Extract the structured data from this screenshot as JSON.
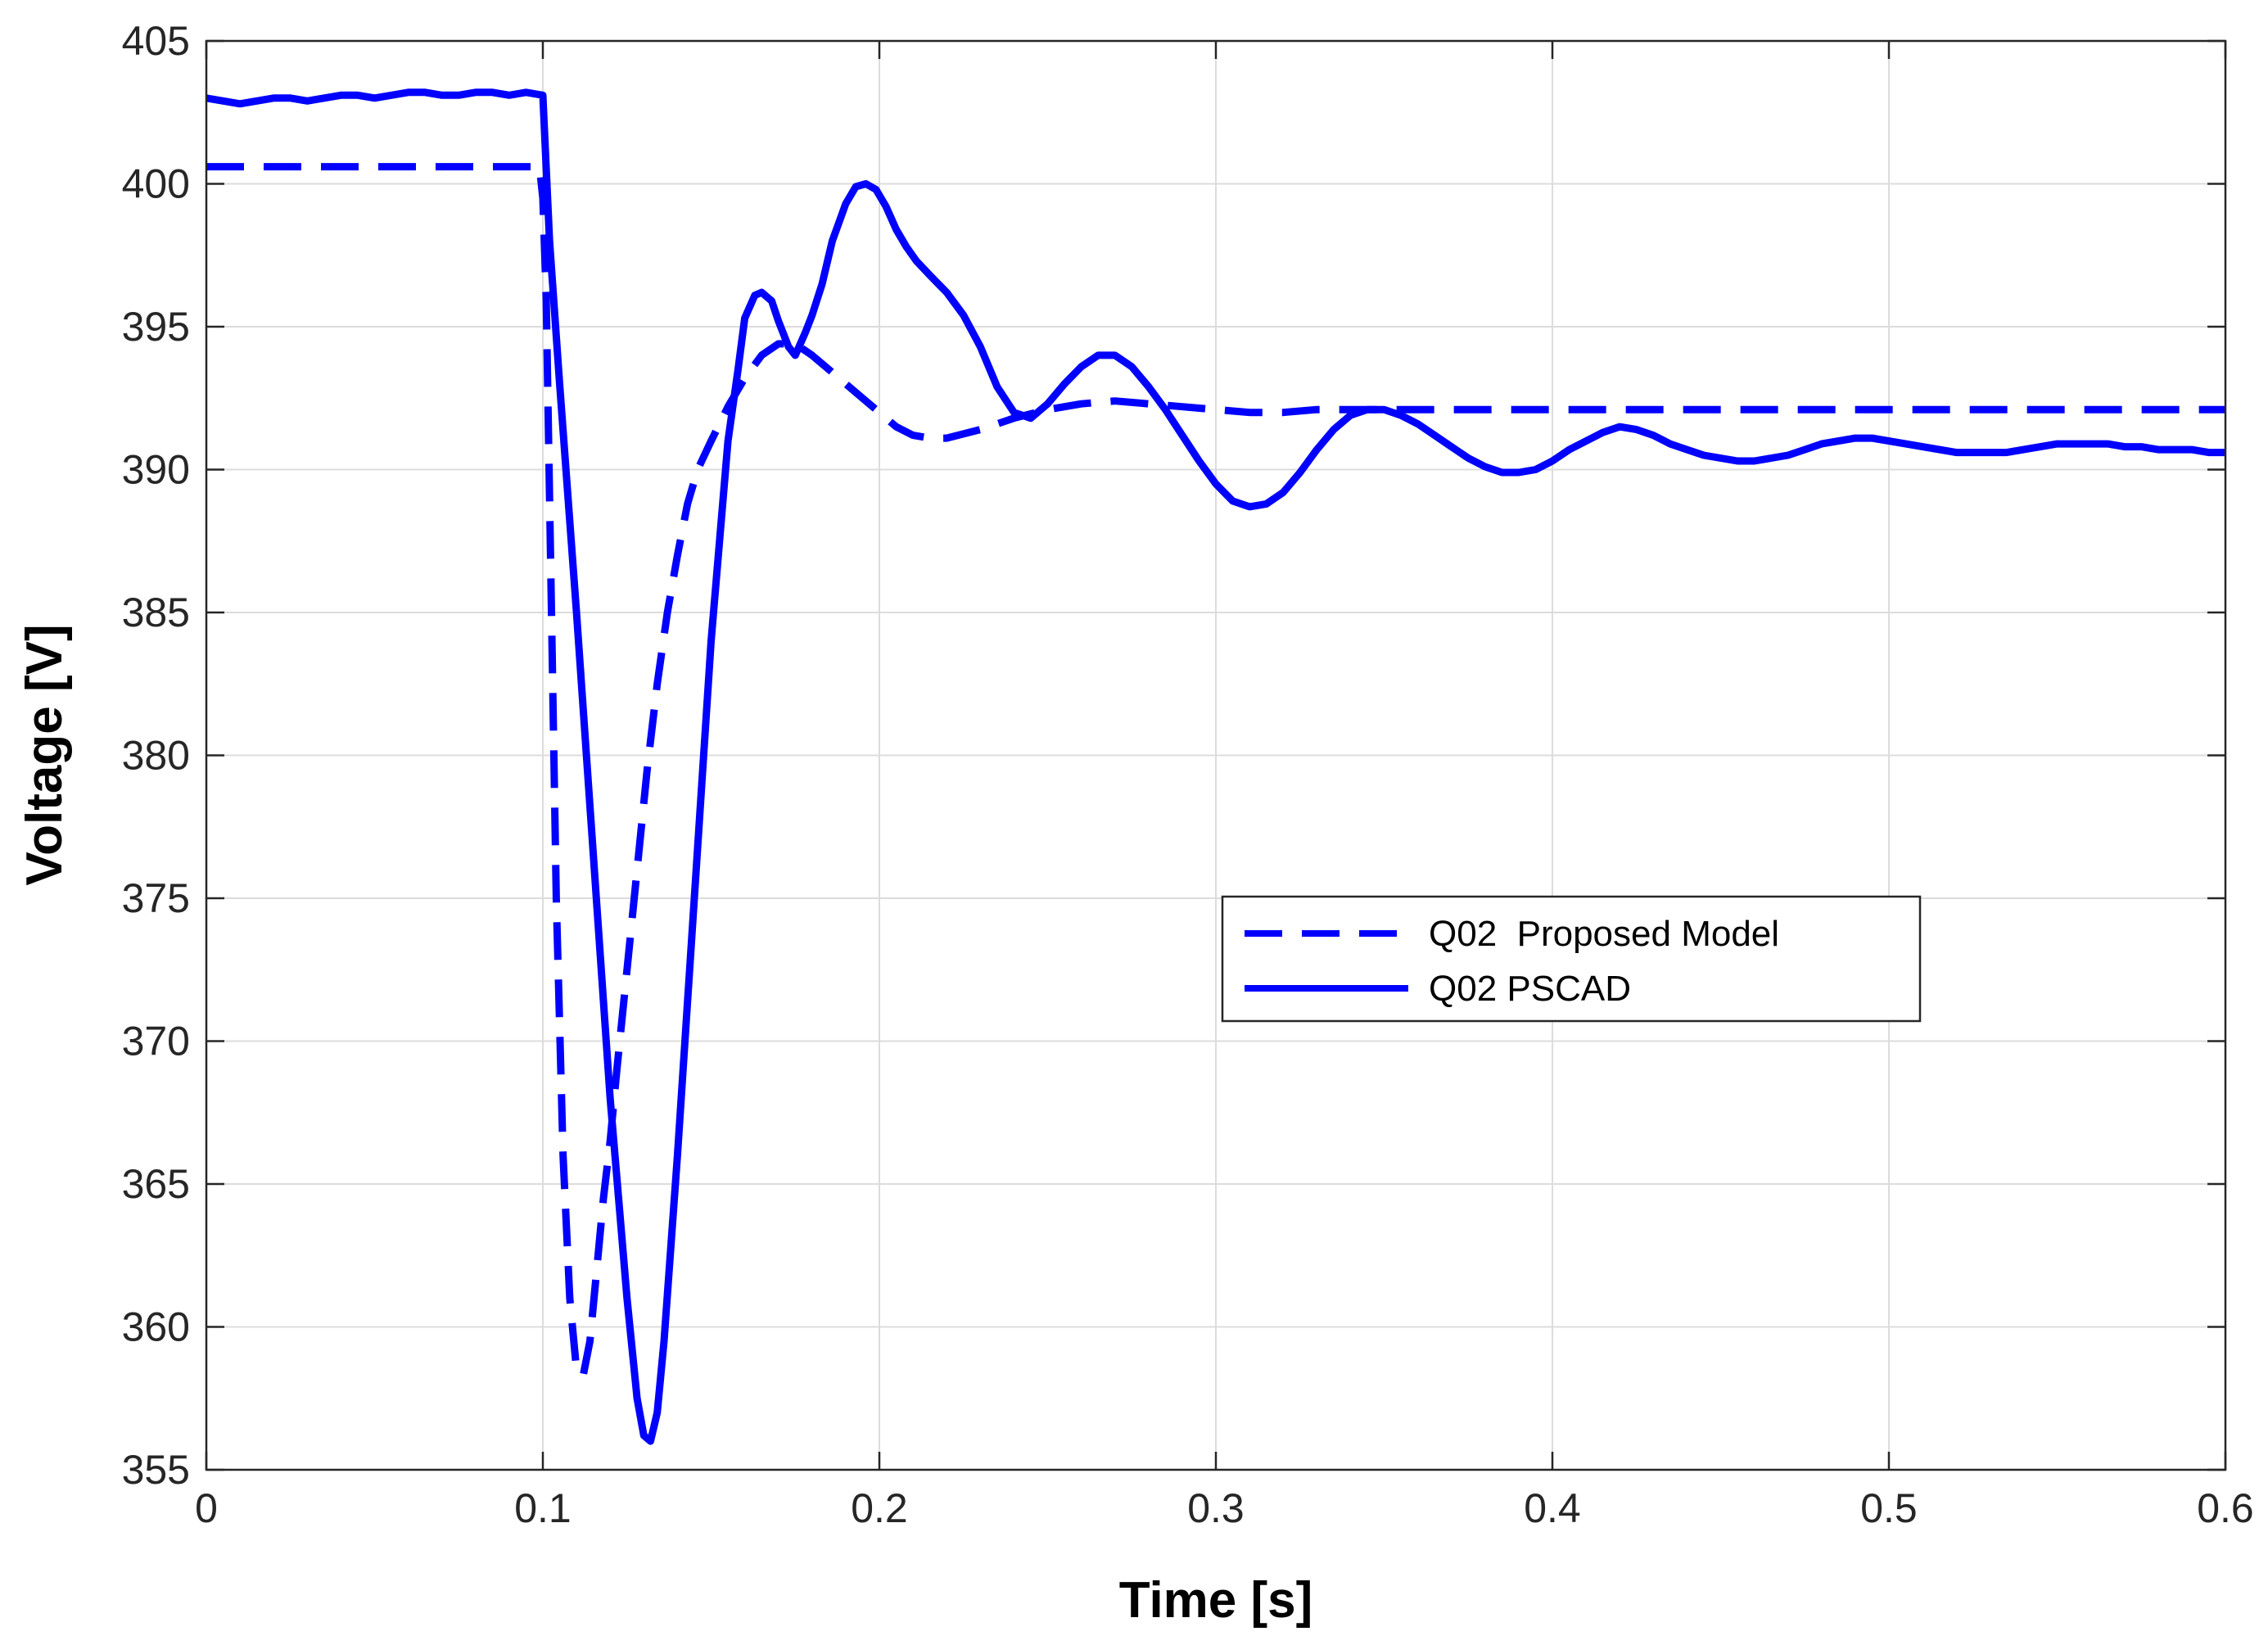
{
  "chart_data": {
    "type": "line",
    "title": "",
    "xlabel": "Time [s]",
    "ylabel": "Voltage [V]",
    "xlim": [
      0,
      0.6
    ],
    "ylim": [
      355,
      405
    ],
    "grid": true,
    "legend_position": "center-right",
    "xticks": [
      0,
      0.1,
      0.2,
      0.3,
      0.4,
      0.5,
      0.6
    ],
    "xtick_labels": [
      "0",
      "0.1",
      "0.2",
      "0.3",
      "0.4",
      "0.5",
      "0.6"
    ],
    "yticks": [
      355,
      360,
      365,
      370,
      375,
      380,
      385,
      390,
      395,
      400,
      405
    ],
    "ytick_labels": [
      "355",
      "360",
      "365",
      "370",
      "375",
      "380",
      "385",
      "390",
      "395",
      "400",
      "405"
    ],
    "series": [
      {
        "name": "Q02  Proposed Model",
        "style": "dashed",
        "color": "#0000ff",
        "x": [
          0,
          0.099,
          0.1,
          0.101,
          0.102,
          0.104,
          0.106,
          0.108,
          0.11,
          0.112,
          0.114,
          0.116,
          0.118,
          0.12,
          0.122,
          0.125,
          0.128,
          0.131,
          0.134,
          0.137,
          0.14,
          0.143,
          0.146,
          0.15,
          0.155,
          0.16,
          0.165,
          0.17,
          0.175,
          0.18,
          0.185,
          0.19,
          0.195,
          0.2,
          0.205,
          0.21,
          0.215,
          0.22,
          0.23,
          0.24,
          0.25,
          0.26,
          0.27,
          0.28,
          0.29,
          0.3,
          0.31,
          0.32,
          0.33,
          0.34,
          0.35,
          0.4,
          0.45,
          0.5,
          0.55,
          0.6
        ],
        "values": [
          400.6,
          400.6,
          399.5,
          396.0,
          389.0,
          375.0,
          366.0,
          361.0,
          358.5,
          358.3,
          359.5,
          362.0,
          364.5,
          366.5,
          369.0,
          372.5,
          376.0,
          379.5,
          382.5,
          385.0,
          387.0,
          388.8,
          390.0,
          391.0,
          392.2,
          393.2,
          394.0,
          394.4,
          394.4,
          394.0,
          393.5,
          393.0,
          392.5,
          392.0,
          391.5,
          391.2,
          391.1,
          391.1,
          391.4,
          391.8,
          392.1,
          392.3,
          392.4,
          392.3,
          392.2,
          392.1,
          392.0,
          392.0,
          392.1,
          392.1,
          392.1,
          392.1,
          392.1,
          392.1,
          392.1,
          392.1
        ]
      },
      {
        "name": "Q02 PSCAD",
        "style": "solid",
        "color": "#0000ff",
        "x": [
          0,
          0.005,
          0.01,
          0.015,
          0.02,
          0.025,
          0.03,
          0.035,
          0.04,
          0.045,
          0.05,
          0.055,
          0.06,
          0.065,
          0.07,
          0.075,
          0.08,
          0.085,
          0.09,
          0.095,
          0.1,
          0.102,
          0.105,
          0.11,
          0.115,
          0.12,
          0.125,
          0.128,
          0.13,
          0.132,
          0.134,
          0.136,
          0.14,
          0.145,
          0.15,
          0.155,
          0.158,
          0.16,
          0.163,
          0.165,
          0.168,
          0.17,
          0.173,
          0.175,
          0.178,
          0.18,
          0.183,
          0.186,
          0.19,
          0.193,
          0.196,
          0.199,
          0.202,
          0.205,
          0.208,
          0.211,
          0.215,
          0.22,
          0.225,
          0.23,
          0.235,
          0.24,
          0.245,
          0.25,
          0.255,
          0.26,
          0.265,
          0.27,
          0.275,
          0.28,
          0.285,
          0.29,
          0.295,
          0.3,
          0.305,
          0.31,
          0.315,
          0.32,
          0.325,
          0.33,
          0.335,
          0.34,
          0.345,
          0.35,
          0.355,
          0.36,
          0.365,
          0.37,
          0.375,
          0.38,
          0.385,
          0.39,
          0.395,
          0.4,
          0.405,
          0.41,
          0.415,
          0.42,
          0.425,
          0.43,
          0.435,
          0.44,
          0.445,
          0.45,
          0.455,
          0.46,
          0.465,
          0.47,
          0.475,
          0.48,
          0.485,
          0.49,
          0.495,
          0.5,
          0.505,
          0.51,
          0.515,
          0.52,
          0.525,
          0.53,
          0.535,
          0.54,
          0.545,
          0.55,
          0.555,
          0.56,
          0.565,
          0.57,
          0.575,
          0.58,
          0.585,
          0.59,
          0.595,
          0.6
        ],
        "values": [
          403.0,
          402.9,
          402.8,
          402.9,
          403.0,
          403.0,
          402.9,
          403.0,
          403.1,
          403.1,
          403.0,
          403.1,
          403.2,
          403.2,
          403.1,
          403.1,
          403.2,
          403.2,
          403.1,
          403.2,
          403.1,
          398.0,
          393.0,
          385.0,
          376.5,
          368.0,
          361.0,
          357.5,
          356.2,
          356.0,
          357.0,
          359.5,
          366.0,
          375.0,
          384.0,
          391.0,
          393.5,
          395.3,
          396.1,
          396.2,
          395.9,
          395.2,
          394.3,
          394.0,
          394.8,
          395.4,
          396.5,
          398.0,
          399.3,
          399.9,
          400.0,
          399.8,
          399.2,
          398.4,
          397.8,
          397.3,
          396.8,
          396.2,
          395.4,
          394.3,
          392.9,
          392.0,
          391.8,
          392.3,
          393.0,
          393.6,
          394.0,
          394.0,
          393.6,
          392.9,
          392.1,
          391.2,
          390.3,
          389.5,
          388.9,
          388.7,
          388.8,
          389.2,
          389.9,
          390.7,
          391.4,
          391.9,
          392.1,
          392.1,
          391.9,
          391.6,
          391.2,
          390.8,
          390.4,
          390.1,
          389.9,
          389.9,
          390.0,
          390.3,
          390.7,
          391.0,
          391.3,
          391.5,
          391.4,
          391.2,
          390.9,
          390.7,
          390.5,
          390.4,
          390.3,
          390.3,
          390.4,
          390.5,
          390.7,
          390.9,
          391.0,
          391.1,
          391.1,
          391.0,
          390.9,
          390.8,
          390.7,
          390.6,
          390.6,
          390.6,
          390.6,
          390.7,
          390.8,
          390.9,
          390.9,
          390.9,
          390.9,
          390.8,
          390.8,
          390.7,
          390.7,
          390.7,
          390.6,
          390.6
        ]
      }
    ]
  },
  "colors": {
    "series": "#0000ff",
    "grid": "#dcdcdc",
    "axis": "#262626"
  }
}
